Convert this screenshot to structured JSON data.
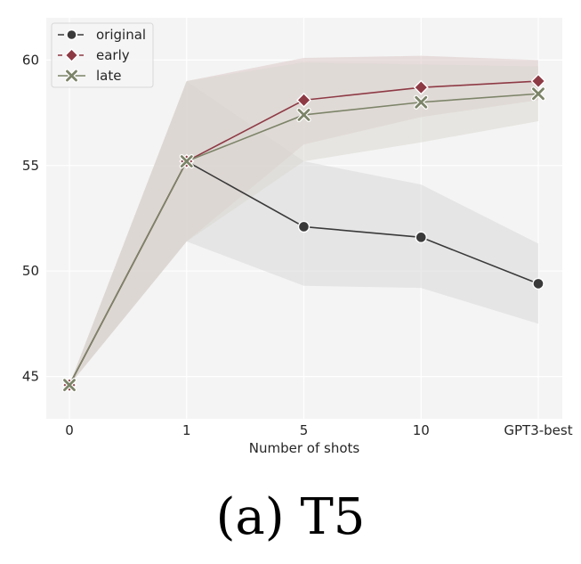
{
  "chart_data": {
    "type": "line",
    "xlabel": "Number of shots",
    "ylabel": "",
    "categories": [
      "0",
      "1",
      "5",
      "10",
      "GPT3-best"
    ],
    "ylim": [
      43,
      62
    ],
    "yticks": [
      45,
      50,
      55,
      60
    ],
    "grid": true,
    "legend_position": "top-left",
    "series": [
      {
        "name": "original",
        "color": "#3a3a3a",
        "marker": "circle",
        "values": [
          44.6,
          55.2,
          52.1,
          51.6,
          49.4
        ],
        "band_low": [
          44.6,
          51.4,
          49.3,
          49.2,
          47.5
        ],
        "band_high": [
          44.6,
          59.0,
          55.2,
          54.1,
          51.3
        ],
        "band_color": "#d9d9d9"
      },
      {
        "name": "early",
        "color": "#8e3a45",
        "marker": "diamond",
        "values": [
          44.6,
          55.2,
          58.1,
          58.7,
          59.0
        ],
        "band_low": [
          44.6,
          51.4,
          56.0,
          57.3,
          58.1
        ],
        "band_high": [
          44.6,
          59.0,
          60.1,
          60.2,
          60.0
        ],
        "band_color": "#dcc9c9"
      },
      {
        "name": "late",
        "color": "#7c8468",
        "marker": "x",
        "values": [
          44.6,
          55.2,
          57.4,
          58.0,
          58.4
        ],
        "band_low": [
          44.6,
          51.4,
          55.2,
          56.1,
          57.1
        ],
        "band_high": [
          44.6,
          59.0,
          59.9,
          59.8,
          59.7
        ],
        "band_color": "#dad9d2"
      }
    ]
  },
  "caption": "(a) T5"
}
